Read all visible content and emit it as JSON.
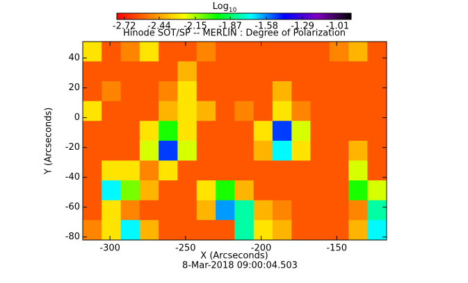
{
  "chart_data": {
    "type": "heatmap",
    "title": "Hinode SOT/SP -- MERLIN : Degree of Polarization",
    "colorbar_label": "Log",
    "colorbar_label_sub": "10",
    "xlabel": "X (Arcseconds)",
    "ylabel": "Y (Arcseconds)",
    "footer": "8-Mar-2018 09:00:04.503",
    "xlim": [
      -318,
      -117
    ],
    "xticks": [
      -300,
      -250,
      -200,
      -150
    ],
    "ylim": [
      -82,
      51
    ],
    "yticks": [
      -80,
      -60,
      -40,
      -20,
      0,
      20,
      40
    ],
    "clim": [
      -2.78,
      -0.9
    ],
    "cticks": [
      -2.72,
      -2.44,
      -2.15,
      -1.87,
      -1.58,
      -1.29,
      -1.01
    ],
    "colormap": [
      "#ff0000",
      "#ff8000",
      "#ffff00",
      "#00ff00",
      "#00ffff",
      "#0000ff",
      "#8000c0",
      "#000000"
    ],
    "x": [
      -311.7,
      -299.2,
      -286.6,
      -274.1,
      -261.5,
      -249,
      -236.4,
      -223.8,
      -211.3,
      -198.7,
      -186.2,
      -173.6,
      -161.1,
      -148.5,
      -135.9,
      -123.4
    ],
    "y": [
      44.4,
      31.1,
      17.8,
      4.5,
      -8.8,
      -22.1,
      -35.4,
      -48.7,
      -62,
      -75.3
    ],
    "z": [
      [
        -2.3,
        -2.6,
        -2.5,
        -2.3,
        -2.6,
        -2.6,
        -2.5,
        -2.6,
        -2.6,
        -2.6,
        -2.6,
        -2.6,
        -2.6,
        -2.5,
        -2.4,
        -2.6
      ],
      [
        -2.6,
        -2.6,
        -2.6,
        -2.6,
        -2.6,
        -2.4,
        -2.6,
        -2.6,
        -2.6,
        -2.6,
        -2.6,
        -2.6,
        -2.6,
        -2.6,
        -2.6,
        -2.6
      ],
      [
        -2.6,
        -2.5,
        -2.6,
        -2.6,
        -2.5,
        -2.3,
        -2.6,
        -2.6,
        -2.6,
        -2.6,
        -2.4,
        -2.6,
        -2.6,
        -2.6,
        -2.6,
        -2.6
      ],
      [
        -2.3,
        -2.6,
        -2.6,
        -2.6,
        -2.4,
        -2.3,
        -2.4,
        -2.6,
        -2.5,
        -2.6,
        -2.3,
        -2.5,
        -2.6,
        -2.6,
        -2.6,
        -2.6
      ],
      [
        -2.6,
        -2.6,
        -2.6,
        -2.3,
        -2.0,
        -2.3,
        -2.6,
        -2.6,
        -2.6,
        -2.3,
        -1.5,
        -2.2,
        -2.6,
        -2.6,
        -2.6,
        -2.6
      ],
      [
        -2.6,
        -2.6,
        -2.6,
        -2.2,
        -1.5,
        -2.2,
        -2.6,
        -2.6,
        -2.6,
        -2.4,
        -1.7,
        -2.3,
        -2.6,
        -2.6,
        -2.4,
        -2.6
      ],
      [
        -2.6,
        -2.3,
        -2.3,
        -2.5,
        -2.3,
        -2.6,
        -2.6,
        -2.6,
        -2.6,
        -2.6,
        -2.6,
        -2.6,
        -2.6,
        -2.6,
        -2.2,
        -2.6
      ],
      [
        -2.6,
        -1.7,
        -2.1,
        -2.4,
        -2.6,
        -2.6,
        -2.3,
        -2.0,
        -2.4,
        -2.6,
        -2.6,
        -2.6,
        -2.6,
        -2.6,
        -2.0,
        -2.2
      ],
      [
        -2.6,
        -2.3,
        -2.5,
        -2.6,
        -2.6,
        -2.6,
        -2.4,
        -1.6,
        -1.8,
        -2.4,
        -2.5,
        -2.6,
        -2.6,
        -2.6,
        -2.5,
        -1.8
      ],
      [
        -2.5,
        -2.3,
        -1.7,
        -2.4,
        -2.6,
        -2.6,
        -2.6,
        -2.6,
        -1.8,
        -2.3,
        -2.4,
        -2.6,
        -2.6,
        -2.6,
        -2.4,
        -1.7
      ]
    ]
  }
}
